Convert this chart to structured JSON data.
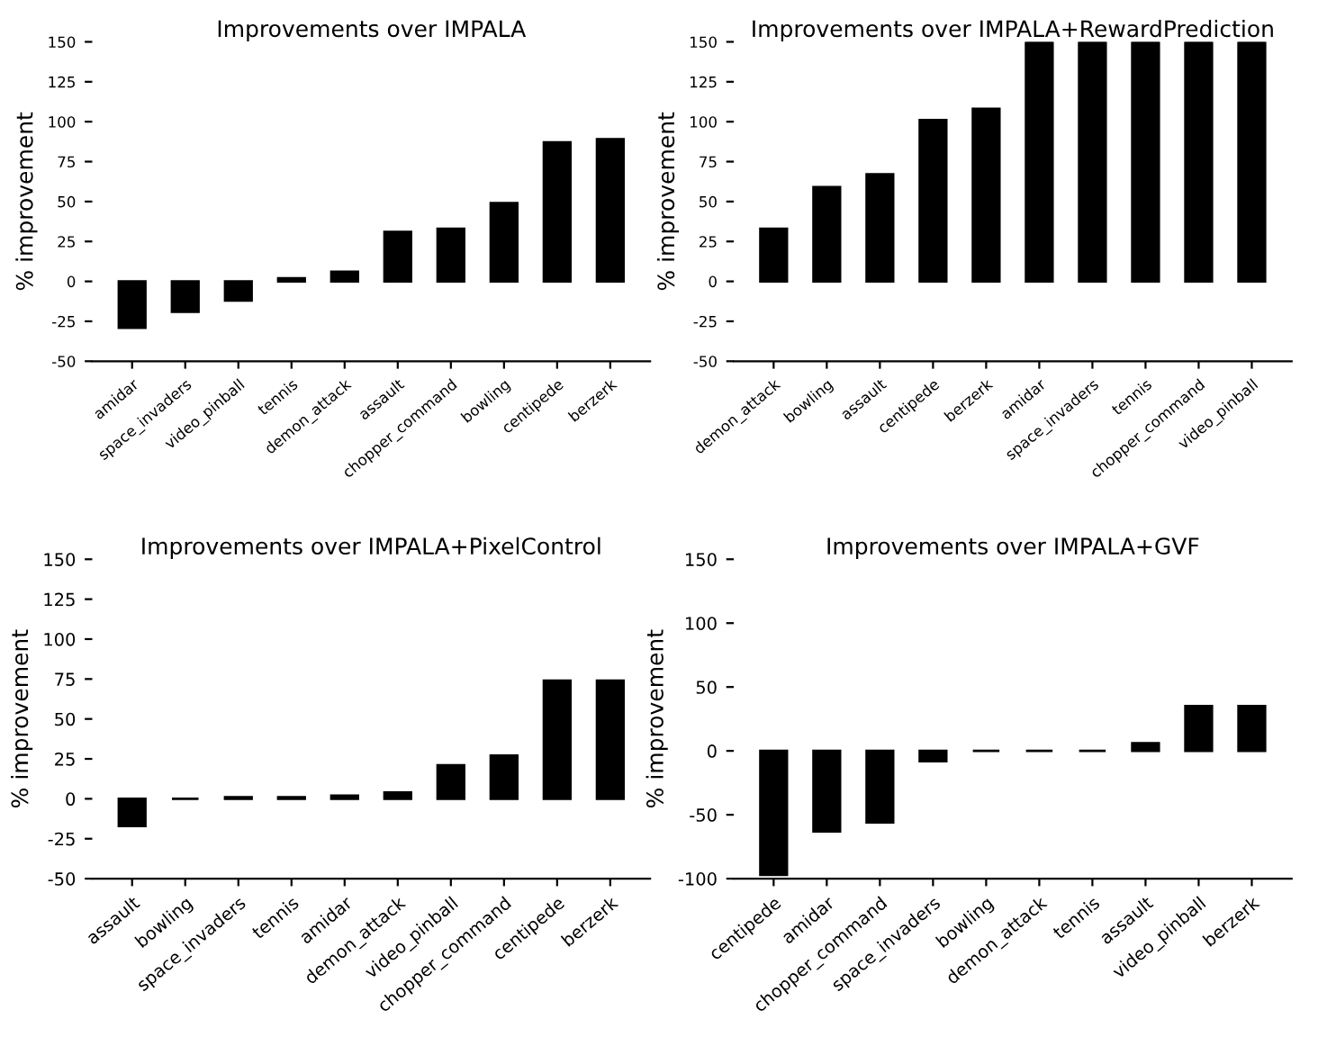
{
  "chart_data": [
    {
      "type": "bar",
      "title": "Improvements over IMPALA",
      "ylabel": "% improvement",
      "categories": [
        "amidar",
        "space_invaders",
        "video_pinball",
        "tennis",
        "demon_attack",
        "assault",
        "chopper_command",
        "bowling",
        "centipede",
        "berzerk"
      ],
      "values": [
        -29,
        -19,
        -12,
        2,
        6,
        31,
        33,
        49,
        87,
        89
      ],
      "color": "#000000",
      "ylim": [
        -50,
        150
      ],
      "yticks": [
        -50,
        -25,
        0,
        25,
        50,
        75,
        100,
        125,
        150
      ],
      "grid": false
    },
    {
      "type": "bar",
      "title": "Improvements over IMPALA+RewardPrediction",
      "ylabel": "% improvement",
      "categories": [
        "demon_attack",
        "bowling",
        "assault",
        "centipede",
        "berzerk",
        "amidar",
        "space_invaders",
        "tennis",
        "chopper_command",
        "video_pinball"
      ],
      "values": [
        33,
        59,
        67,
        101,
        108,
        150,
        150,
        150,
        150,
        150
      ],
      "color": "#000000",
      "ylim": [
        -50,
        150
      ],
      "yticks": [
        -50,
        -25,
        0,
        25,
        50,
        75,
        100,
        125,
        150
      ],
      "grid": false
    },
    {
      "type": "bar",
      "title": "Improvements over IMPALA+PixelControl",
      "ylabel": "% improvement",
      "categories": [
        "assault",
        "bowling",
        "space_invaders",
        "tennis",
        "amidar",
        "demon_attack",
        "video_pinball",
        "chopper_command",
        "centipede",
        "berzerk"
      ],
      "values": [
        -17,
        0,
        1,
        1,
        2,
        4,
        21,
        27,
        74,
        74
      ],
      "color": "#000000",
      "ylim": [
        -50,
        150
      ],
      "yticks": [
        -50,
        -25,
        0,
        25,
        50,
        75,
        100,
        125,
        150
      ],
      "grid": false
    },
    {
      "type": "bar",
      "title": "Improvements over IMPALA+GVF",
      "ylabel": "% improvement",
      "categories": [
        "centipede",
        "amidar",
        "chopper_command",
        "space_invaders",
        "bowling",
        "demon_attack",
        "tennis",
        "assault",
        "video_pinball",
        "berzerk"
      ],
      "values": [
        -97,
        -63,
        -56,
        -8,
        0,
        0,
        0,
        6,
        35,
        35
      ],
      "color": "#000000",
      "ylim": [
        -100,
        150
      ],
      "yticks": [
        -100,
        -50,
        0,
        50,
        100,
        150
      ],
      "grid": false
    }
  ]
}
